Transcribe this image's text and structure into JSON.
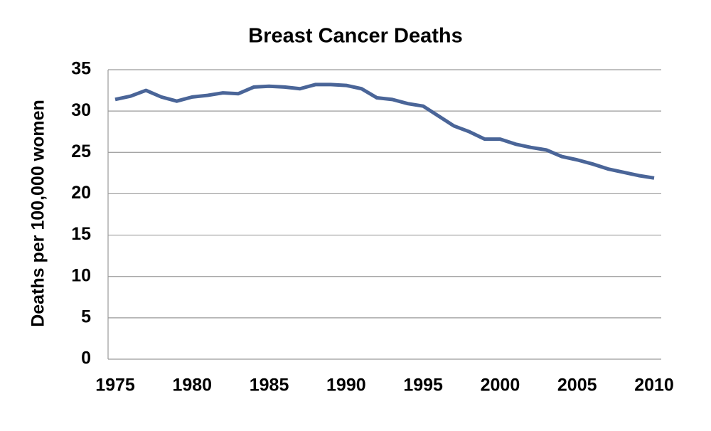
{
  "chart_data": {
    "type": "line",
    "title": "Breast Cancer Deaths",
    "y_label": "Deaths per 100,000 women",
    "x": [
      1975,
      1976,
      1977,
      1978,
      1979,
      1980,
      1981,
      1982,
      1983,
      1984,
      1985,
      1986,
      1987,
      1988,
      1989,
      1990,
      1991,
      1992,
      1993,
      1994,
      1995,
      1996,
      1997,
      1998,
      1999,
      2000,
      2001,
      2002,
      2003,
      2004,
      2005,
      2006,
      2007,
      2008,
      2009,
      2010
    ],
    "series": [
      {
        "name": "Breast cancer deaths",
        "color": "#4a6598",
        "values": [
          31.4,
          31.8,
          32.5,
          31.7,
          31.2,
          31.7,
          31.9,
          32.2,
          32.1,
          32.9,
          33.0,
          32.9,
          32.7,
          33.2,
          33.2,
          33.1,
          32.7,
          31.6,
          31.4,
          30.9,
          30.6,
          29.4,
          28.2,
          27.5,
          26.6,
          26.6,
          26.0,
          25.6,
          25.3,
          24.5,
          24.1,
          23.6,
          23.0,
          22.6,
          22.2,
          21.9
        ]
      }
    ],
    "xlim": [
      1975,
      2010
    ],
    "xticks": [
      1975,
      1980,
      1985,
      1990,
      1995,
      2000,
      2005,
      2010
    ],
    "ylim": [
      0,
      35
    ],
    "yticks": [
      0,
      5,
      10,
      15,
      20,
      25,
      30,
      35
    ],
    "grid": true
  }
}
